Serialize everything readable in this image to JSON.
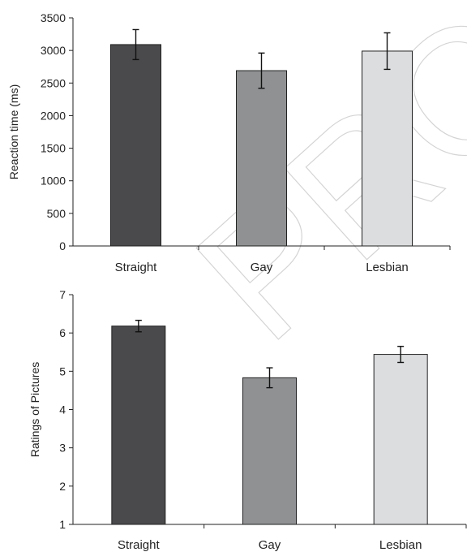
{
  "watermark": {
    "text": "PROOF"
  },
  "chart_data": [
    {
      "type": "bar",
      "categories": [
        "Straight",
        "Gay",
        "Lesbian"
      ],
      "values": [
        3090,
        2690,
        2990
      ],
      "error": [
        230,
        270,
        280
      ],
      "colors": [
        "#4a4a4c",
        "#8f9193",
        "#dcdddf"
      ],
      "ylabel": "Reaction time (ms)",
      "ylim": [
        0,
        3500
      ],
      "yticks": [
        0,
        500,
        1000,
        1500,
        2000,
        2500,
        3000,
        3500
      ],
      "grid": false,
      "legend": "none"
    },
    {
      "type": "bar",
      "categories": [
        "Straight",
        "Gay",
        "Lesbian"
      ],
      "values": [
        6.18,
        4.83,
        5.44
      ],
      "error": [
        0.15,
        0.26,
        0.21
      ],
      "colors": [
        "#4a4a4c",
        "#8f9193",
        "#dcdddf"
      ],
      "ylabel": "Ratings of Pictures",
      "ylim": [
        1,
        7
      ],
      "yticks": [
        1,
        2,
        3,
        4,
        5,
        6,
        7
      ],
      "grid": false,
      "legend": "none"
    }
  ]
}
